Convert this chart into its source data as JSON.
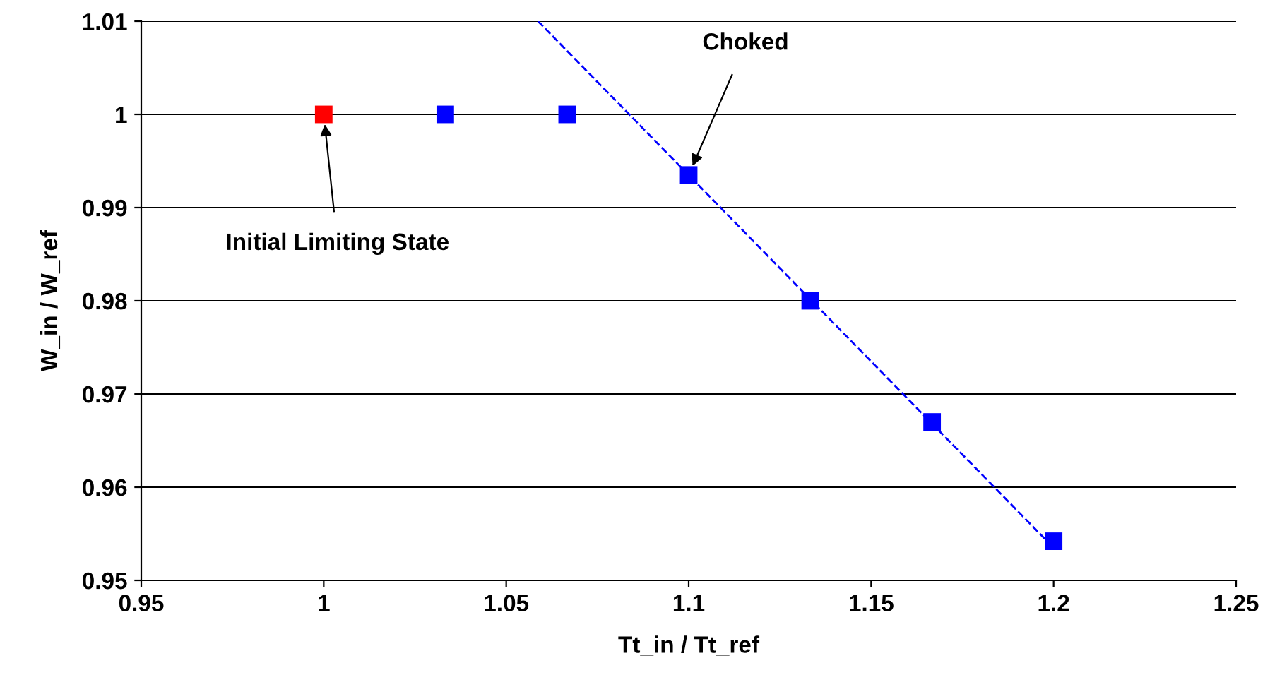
{
  "chart_data": {
    "type": "scatter",
    "xlabel": "Tt_in / Tt_ref",
    "ylabel": "W_in / W_ref",
    "xlim": [
      0.95,
      1.25
    ],
    "xticks": [
      0.95,
      1,
      1.05,
      1.1,
      1.15,
      1.2,
      1.25
    ],
    "ylim": [
      0.95,
      1.01
    ],
    "yticks": [
      0.95,
      0.96,
      0.97,
      0.98,
      0.99,
      1,
      1.01
    ],
    "grid": "y",
    "legend": false,
    "marker": "square",
    "series": [
      {
        "color": "#ff0000",
        "x": [
          1.0
        ],
        "values": [
          1.0
        ]
      },
      {
        "color": "#0000ff",
        "x": [
          1.0333,
          1.0667,
          1.1,
          1.1333,
          1.1667,
          1.2
        ],
        "values": [
          1.0,
          1.0,
          0.9935,
          0.98,
          0.967,
          0.9542
        ]
      },
      {
        "type": "line",
        "marker": "none",
        "color": "#0000ff",
        "line_style": "dashed",
        "x": [
          1.0587,
          1.2
        ],
        "values": [
          1.01,
          0.9535
        ]
      }
    ],
    "annotations": [
      {
        "text": "Choked",
        "x": 1.1,
        "y": 0.9935
      },
      {
        "text": "Initial Limiting State",
        "x": 1.0,
        "y": 1.0
      }
    ]
  }
}
